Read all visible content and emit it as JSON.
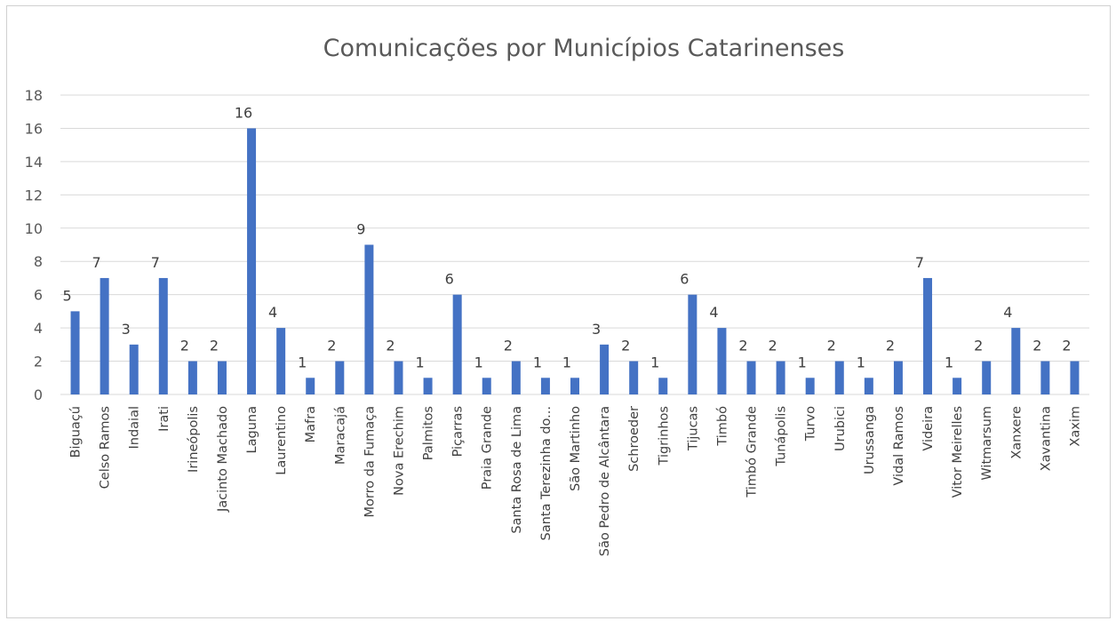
{
  "chart_data": {
    "type": "bar",
    "title": "Comunicações por Municípios Catarinenses",
    "xlabel": "",
    "ylabel": "",
    "ylim": [
      0,
      18
    ],
    "yticks": [
      0,
      2,
      4,
      6,
      8,
      10,
      12,
      14,
      16,
      18
    ],
    "grid": true,
    "legend": "none",
    "bar_color": "#4472C4",
    "categories": [
      "Biguaçú",
      "Celso Ramos",
      "Indaial",
      "Irati",
      "Irineópolis",
      "Jacinto Machado",
      "Laguna",
      "Laurentino",
      "Mafra",
      "Maracajá",
      "Morro da Fumaça",
      "Nova Erechim",
      "Palmitos",
      "Piçarras",
      "Praia Grande",
      "Santa Rosa de Lima",
      "Santa Terezinha do...",
      "São Martinho",
      "São Pedro de Alcântara",
      "Schroeder",
      "Tigrinhos",
      "Tijucas",
      "Timbó",
      "Timbó Grande",
      "Tunápolis",
      "Turvo",
      "Urubici",
      "Urussanga",
      "Vidal Ramos",
      "Videira",
      "Vitor Meirelles",
      "Witmarsum",
      "Xanxere",
      "Xavantina",
      "Xaxim"
    ],
    "values": [
      5,
      7,
      3,
      7,
      2,
      2,
      16,
      4,
      1,
      2,
      9,
      2,
      1,
      6,
      1,
      2,
      1,
      1,
      3,
      2,
      1,
      6,
      4,
      2,
      2,
      1,
      2,
      1,
      2,
      7,
      1,
      2,
      4,
      2,
      2
    ]
  }
}
